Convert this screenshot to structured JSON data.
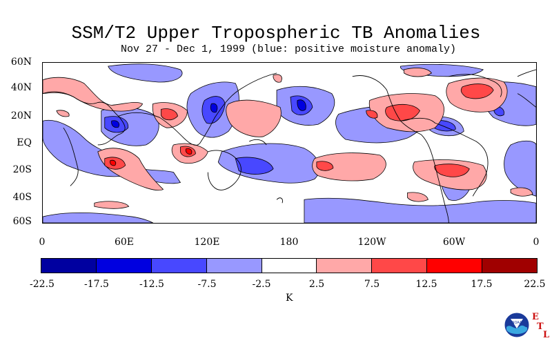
{
  "title": "SSM/T2 Upper Tropospheric TB Anomalies",
  "subtitle": "Nov 27 - Dec 1, 1999 (blue: positive moisture anomaly)",
  "lat_labels": [
    "60N",
    "40N",
    "20N",
    "EQ",
    "20S",
    "40S",
    "60S"
  ],
  "lon_labels": [
    "0",
    "60E",
    "120E",
    "180",
    "120W",
    "60W",
    "0"
  ],
  "colorbar": {
    "labels": [
      "-22.5",
      "-17.5",
      "-12.5",
      "-7.5",
      "-2.5",
      "2.5",
      "7.5",
      "12.5",
      "17.5",
      "22.5"
    ],
    "colors": [
      "#0000a0",
      "#0000e0",
      "#4848ff",
      "#9898ff",
      "#ffffff",
      "#ffa8a8",
      "#ff4848",
      "#ff0000",
      "#a00000"
    ],
    "unit": "K"
  },
  "colors": {
    "blue_anomaly": "#8c8cff",
    "red_anomaly": "#ffa8a8",
    "strong_blue": "#4646ff",
    "strong_red": "#ff4848"
  },
  "logo": {
    "text": "NOAA",
    "letters": [
      "E",
      "T",
      "L"
    ]
  }
}
